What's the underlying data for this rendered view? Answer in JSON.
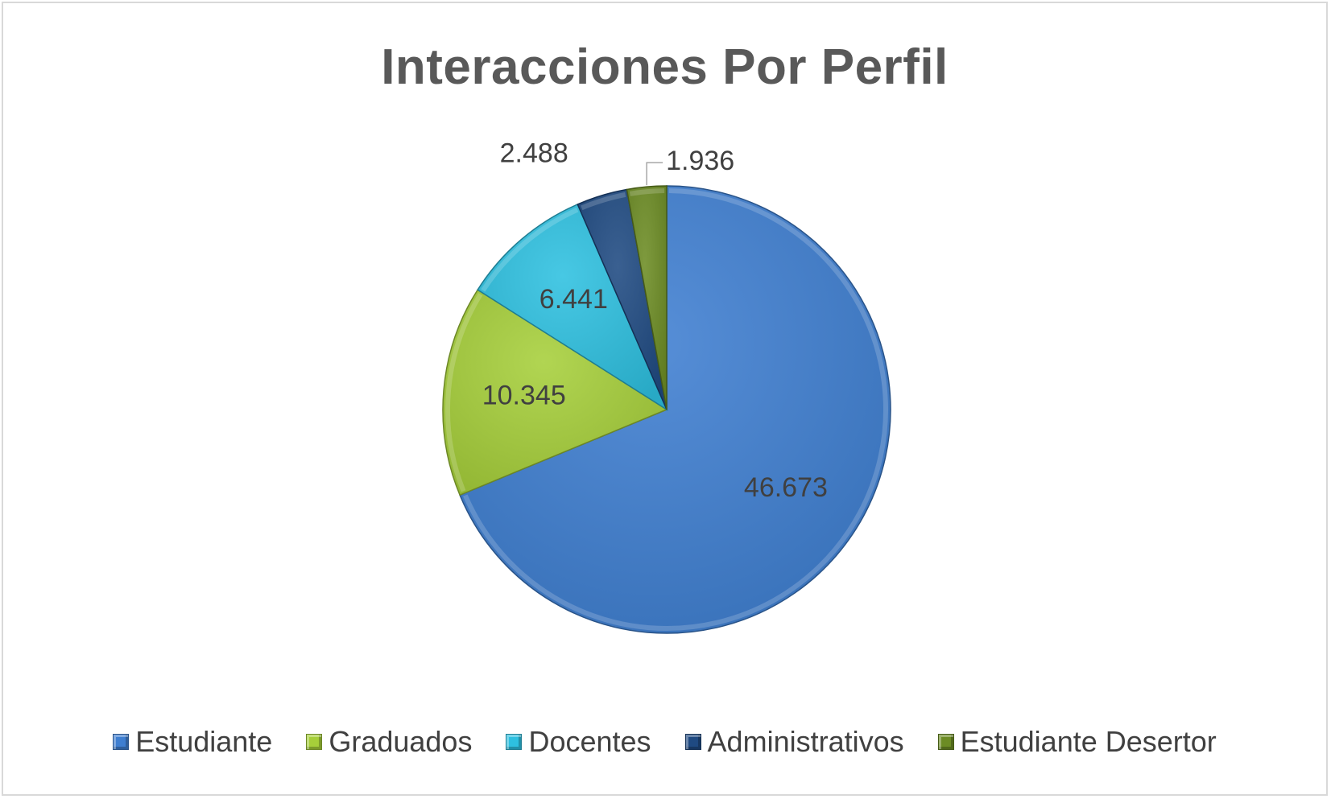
{
  "chart_data": {
    "type": "pie",
    "title": "Interacciones Por Perfil",
    "categories": [
      "Estudiante",
      "Graduados",
      "Docentes",
      "Administrativos",
      "Estudiante Desertor"
    ],
    "values": [
      46673,
      10345,
      6441,
      2488,
      1936
    ],
    "data_labels": [
      "46.673",
      "10.345",
      "6.441",
      "2.488",
      "1.936"
    ],
    "colors": [
      "#3f7fd1",
      "#a6cf3a",
      "#2ec0e0",
      "#1f4a82",
      "#6c8c24"
    ],
    "legend_position": "bottom",
    "start_angle": "12 o'clock",
    "direction": "clockwise"
  }
}
